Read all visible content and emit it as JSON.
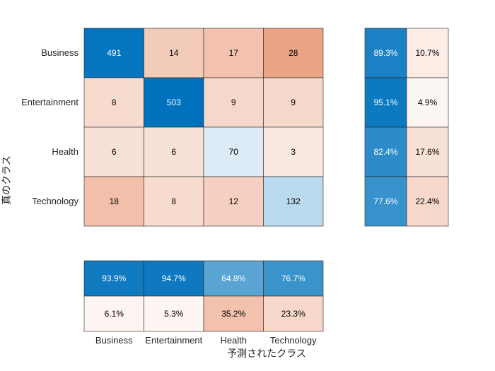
{
  "chart_data": {
    "type": "heatmap",
    "xlabel": "予測されたクラス",
    "ylabel": "真のクラス",
    "classes": [
      "Business",
      "Entertainment",
      "Health",
      "Technology"
    ],
    "matrix": [
      [
        491,
        14,
        17,
        28
      ],
      [
        8,
        503,
        9,
        9
      ],
      [
        6,
        6,
        70,
        3
      ],
      [
        18,
        8,
        12,
        132
      ]
    ],
    "row_summary": [
      [
        "89.3%",
        "10.7%"
      ],
      [
        "95.1%",
        "4.9%"
      ],
      [
        "82.4%",
        "17.6%"
      ],
      [
        "77.6%",
        "22.4%"
      ]
    ],
    "row_summary_values": [
      [
        89.3,
        10.7
      ],
      [
        95.1,
        4.9
      ],
      [
        82.4,
        17.6
      ],
      [
        77.6,
        22.4
      ]
    ],
    "column_summary": [
      [
        "93.9%",
        "94.7%",
        "64.8%",
        "76.7%"
      ],
      [
        "6.1%",
        "5.3%",
        "35.2%",
        "23.3%"
      ]
    ],
    "column_summary_values": [
      [
        93.9,
        94.7,
        64.8,
        76.7
      ],
      [
        6.1,
        5.3,
        35.2,
        23.3
      ]
    ],
    "colors": {
      "correct": "#0072bd",
      "incorrect": "#d95319",
      "background": "#ffffff",
      "border": "#262626"
    }
  }
}
